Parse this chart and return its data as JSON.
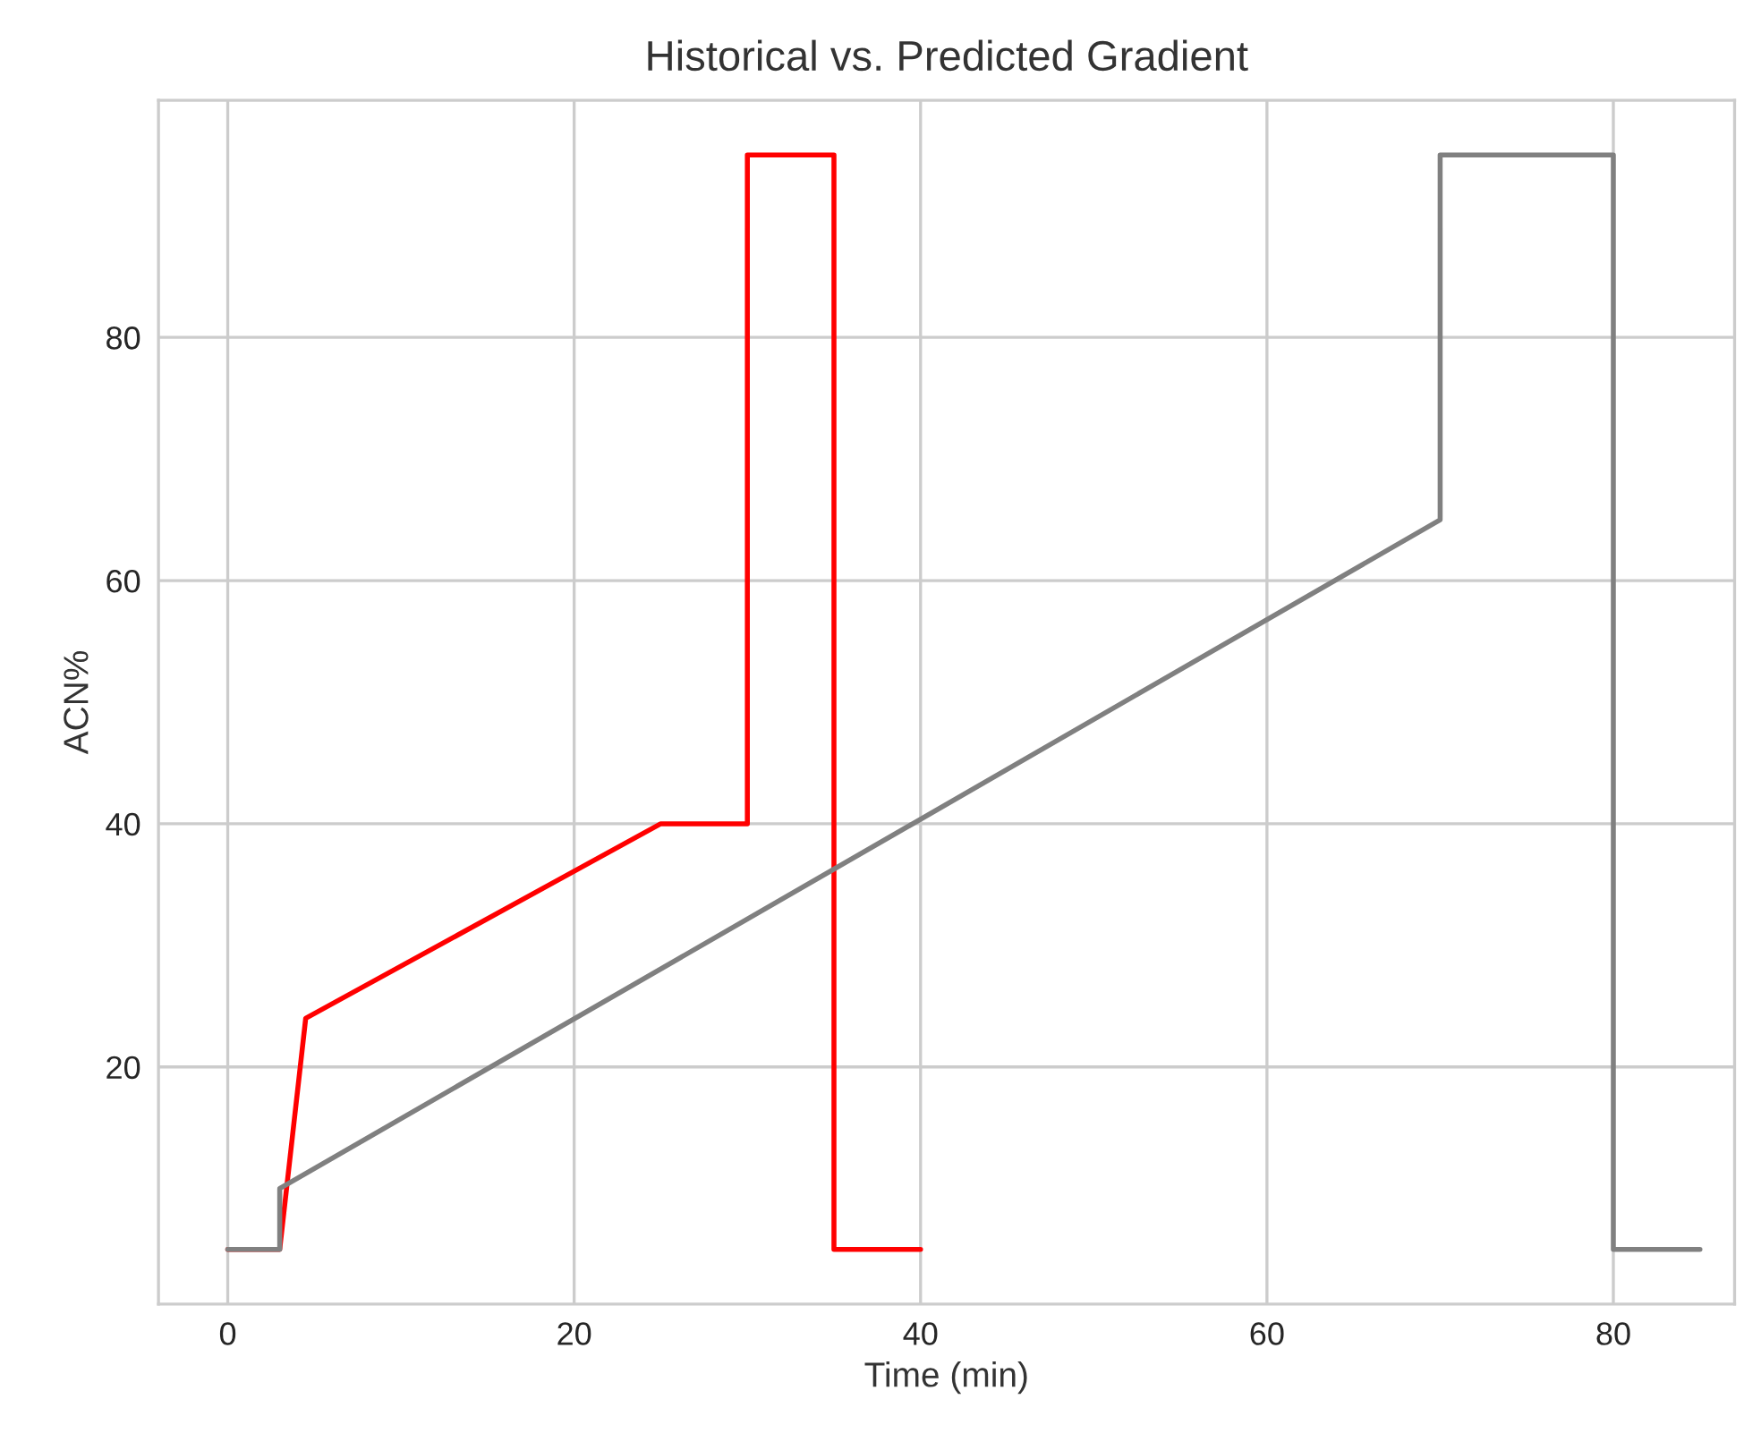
{
  "chart_data": {
    "type": "line",
    "title": "Historical vs. Predicted Gradient",
    "xlabel": "Time (min)",
    "ylabel": "ACN%",
    "series": [
      {
        "color": "#ff0000",
        "x": [
          0,
          3,
          4.5,
          25,
          30,
          30,
          35,
          35,
          40
        ],
        "values": [
          5,
          5,
          24,
          40,
          40,
          95,
          95,
          5,
          5
        ]
      },
      {
        "color": "#808080",
        "x": [
          0,
          3,
          3,
          70,
          70,
          80,
          80,
          85
        ],
        "values": [
          5,
          5,
          10,
          65,
          95,
          95,
          5,
          5
        ]
      }
    ],
    "xlim": [
      -4,
      87
    ],
    "ylim": [
      0.5,
      99.5
    ],
    "xticks": [
      0,
      20,
      40,
      60,
      80
    ],
    "yticks": [
      20,
      40,
      60,
      80
    ],
    "grid": true
  }
}
